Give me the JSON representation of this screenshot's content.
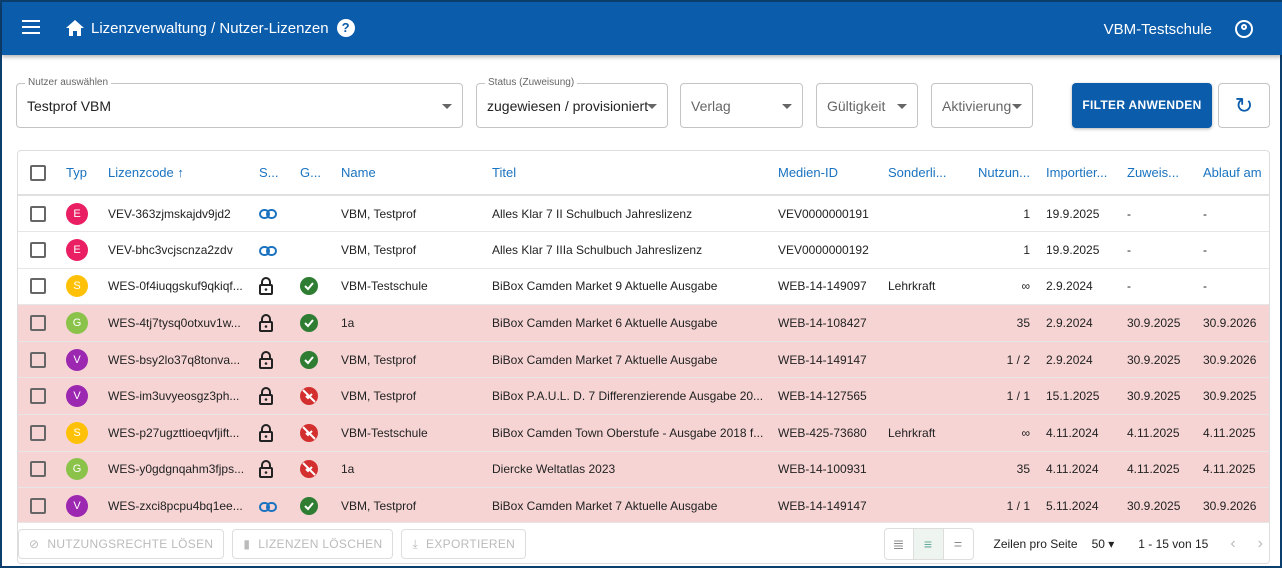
{
  "header": {
    "breadcrumb": "Lizenzverwaltung / Nutzer-Lizenzen",
    "help": "?",
    "school": "VBM-Testschule"
  },
  "filters": {
    "user": {
      "label": "Nutzer auswählen",
      "value": "Testprof VBM"
    },
    "status": {
      "label": "Status (Zuweisung)",
      "value": "zugewiesen / provisioniert"
    },
    "verlag": {
      "placeholder": "Verlag"
    },
    "validity": {
      "placeholder": "Gültigkeit"
    },
    "activation": {
      "placeholder": "Aktivierung"
    },
    "apply": "FILTER ANWENDEN"
  },
  "colors": {
    "primary": "#0b5cab",
    "highlight_row": "#f6d4d4",
    "ok": "#2e7d32",
    "error": "#d32f2f"
  },
  "table": {
    "columns": [
      "Typ",
      "Lizenzcode ↑",
      "S...",
      "G...",
      "Name",
      "Titel",
      "Medien-ID",
      "Sonderli...",
      "Nutzun...",
      "Importier...",
      "Zuweis...",
      "Ablauf am"
    ],
    "rows": [
      {
        "type": "E",
        "type_color": "#e91e63",
        "code": "VEV-363zjmskajdv9jd2",
        "s": "link",
        "g": "",
        "name": "VBM, Testprof",
        "title": "Alles Klar 7 II Schulbuch Jahreslizenz",
        "media": "VEV0000000191",
        "special": "",
        "usage": "1",
        "imported": "19.9.2025",
        "assigned": "-",
        "expires": "-",
        "highlight": false
      },
      {
        "type": "E",
        "type_color": "#e91e63",
        "code": "VEV-bhc3vcjscnza2zdv",
        "s": "link",
        "g": "",
        "name": "VBM, Testprof",
        "title": "Alles Klar 7 IIIa Schulbuch Jahreslizenz",
        "media": "VEV0000000192",
        "special": "",
        "usage": "1",
        "imported": "19.9.2025",
        "assigned": "-",
        "expires": "-",
        "highlight": false
      },
      {
        "type": "S",
        "type_color": "#ffc107",
        "code": "WES-0f4iuqgskuf9qkiqf...",
        "s": "lock",
        "g": "ok",
        "name": "VBM-Testschule",
        "title": "BiBox Camden Market 9 Aktuelle Ausgabe",
        "media": "WEB-14-149097",
        "special": "Lehrkraft",
        "usage": "∞",
        "imported": "2.9.2024",
        "assigned": "-",
        "expires": "-",
        "highlight": false
      },
      {
        "type": "G",
        "type_color": "#8bc34a",
        "code": "WES-4tj7tysq0otxuv1w...",
        "s": "lock",
        "g": "ok",
        "name": "1a",
        "title": "BiBox Camden Market 6 Aktuelle Ausgabe",
        "media": "WEB-14-108427",
        "special": "",
        "usage": "35",
        "imported": "2.9.2024",
        "assigned": "30.9.2025",
        "expires": "30.9.2026",
        "highlight": true
      },
      {
        "type": "V",
        "type_color": "#9c27b0",
        "code": "WES-bsy2lo37q8tonva...",
        "s": "lock",
        "g": "ok",
        "name": "VBM, Testprof",
        "title": "BiBox Camden Market 7 Aktuelle Ausgabe",
        "media": "WEB-14-149147",
        "special": "",
        "usage": "1 / 2",
        "imported": "2.9.2024",
        "assigned": "30.9.2025",
        "expires": "30.9.2026",
        "highlight": true
      },
      {
        "type": "V",
        "type_color": "#9c27b0",
        "code": "WES-im3uvyeosgz3ph...",
        "s": "lock",
        "g": "error",
        "name": "VBM, Testprof",
        "title": "BiBox P.A.U.L. D. 7 Differenzierende Ausgabe 20...",
        "media": "WEB-14-127565",
        "special": "",
        "usage": "1 / 1",
        "imported": "15.1.2025",
        "assigned": "30.9.2025",
        "expires": "30.9.2025",
        "highlight": true
      },
      {
        "type": "S",
        "type_color": "#ffc107",
        "code": "WES-p27ugzttioeqvfjift...",
        "s": "lock",
        "g": "error",
        "name": "VBM-Testschule",
        "title": "BiBox Camden Town Oberstufe - Ausgabe 2018 f...",
        "media": "WEB-425-73680",
        "special": "Lehrkraft",
        "usage": "∞",
        "imported": "4.11.2024",
        "assigned": "4.11.2025",
        "expires": "4.11.2025",
        "highlight": true
      },
      {
        "type": "G",
        "type_color": "#8bc34a",
        "code": "WES-y0gdgnqahm3fjps...",
        "s": "lock",
        "g": "error",
        "name": "1a",
        "title": "Diercke Weltatlas 2023",
        "media": "WEB-14-100931",
        "special": "",
        "usage": "35",
        "imported": "4.11.2024",
        "assigned": "4.11.2025",
        "expires": "4.11.2025",
        "highlight": true
      },
      {
        "type": "V",
        "type_color": "#9c27b0",
        "code": "WES-zxci8pcpu4bq1ee...",
        "s": "link",
        "g": "ok",
        "name": "VBM, Testprof",
        "title": "BiBox Camden Market 7 Aktuelle Ausgabe",
        "media": "WEB-14-149147",
        "special": "",
        "usage": "1 / 1",
        "imported": "5.11.2024",
        "assigned": "30.9.2025",
        "expires": "30.9.2026",
        "highlight": true
      }
    ]
  },
  "footer": {
    "release": "NUTZUNGSRECHTE LÖSEN",
    "delete": "LIZENZEN LÖSCHEN",
    "export": "EXPORTIEREN",
    "rows_label": "Zeilen pro Seite",
    "rows_value": "50",
    "range": "1 - 15 von 15"
  }
}
